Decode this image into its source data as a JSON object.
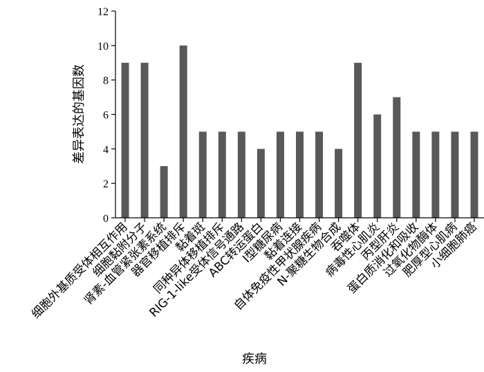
{
  "chart_data": {
    "type": "bar",
    "xlabel": "疾病",
    "ylabel": "差异表达的基因数",
    "ylim": [
      0,
      12
    ],
    "yticks": [
      0,
      2,
      4,
      6,
      8,
      10,
      12
    ],
    "grid": false,
    "bar_color": "#595959",
    "categories": [
      "细胞外基质受体相互作用",
      "细胞黏附分子",
      "肾素-血管紧张素系统",
      "器官移植排斥",
      "黏着斑",
      "同种异体移植排斥",
      "RIG-1-like受体信号通路",
      "ABC转运蛋白",
      "I型糖尿病",
      "黏着连接",
      "自体免疫性甲状腺疾病",
      "N-聚糖生物合成",
      "吞噬体",
      "病毒性心肌炎",
      "丙型肝炎",
      "蛋白质消化和吸收",
      "过氧化物酶体",
      "肥厚型心肌病",
      "小细胞肺癌"
    ],
    "values": [
      9,
      9,
      3,
      10,
      5,
      5,
      5,
      4,
      5,
      5,
      5,
      4,
      9,
      6,
      7,
      5,
      5,
      5,
      5
    ]
  }
}
